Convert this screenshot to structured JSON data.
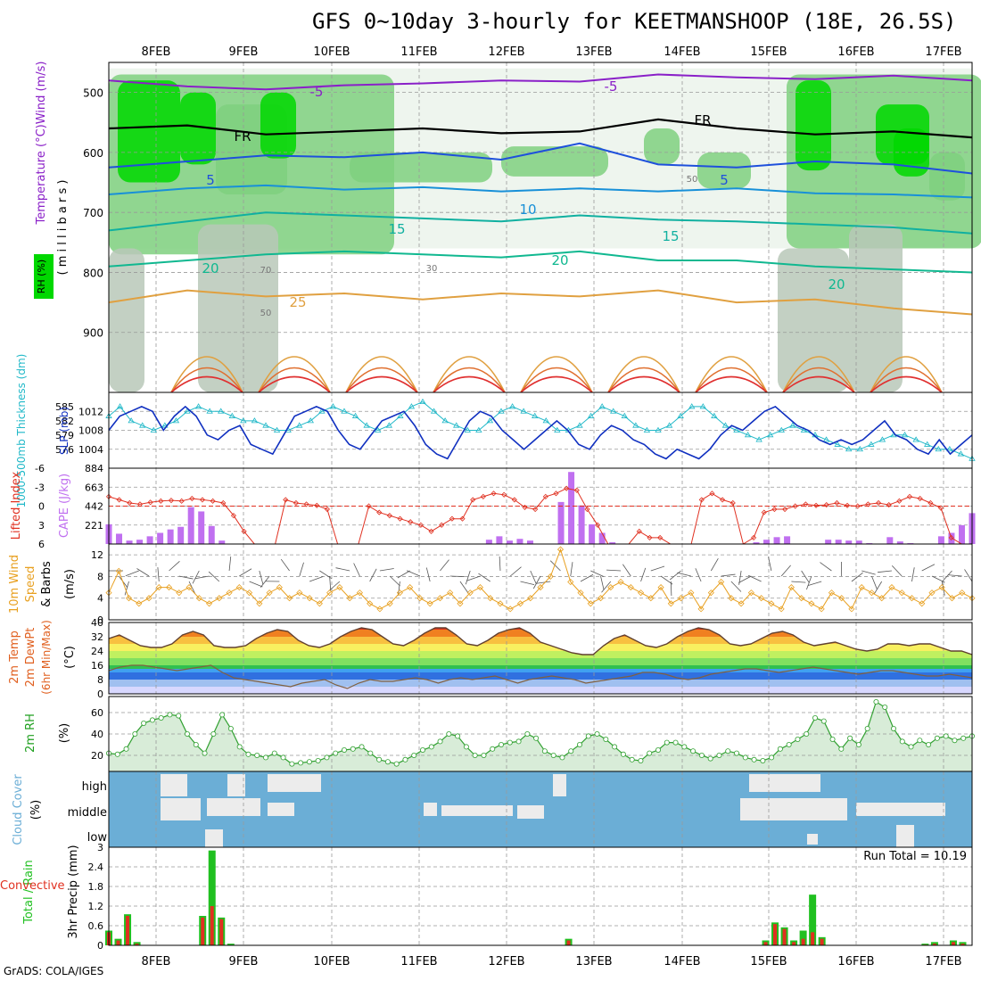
{
  "title": "GFS 0~10day 3-hourly for KEETMANSHOOP (18E, 26.5S)",
  "credit": "GrADS: COLA/IGES",
  "dates": [
    "8FEB",
    "9FEB",
    "10FEB",
    "11FEB",
    "12FEB",
    "13FEB",
    "14FEB",
    "15FEB",
    "16FEB",
    "17FEB"
  ],
  "colors": {
    "rh_green": "#00d800",
    "freezing": "#000000",
    "temp_purple": "#8a2be2",
    "temp_blue": "#1e50dc",
    "cape_bar": "#c070f0",
    "li_line": "#e03020",
    "slp_line": "#1030c0",
    "thk_line": "#20b8c8",
    "wind_line": "#e8a020",
    "rain": "#20c020",
    "conv": "#e03020",
    "cloud_bg": "#6baed6"
  },
  "chart_data": [
    {
      "type": "heatmap",
      "panel": "vertical cross-section",
      "ylabel_left": "RH (%)",
      "ylabel": "Temperature (°C)Wind (m/s)",
      "ylabel2": "( m i l l i b a r s )",
      "yticks": [
        500,
        600,
        700,
        800,
        900
      ],
      "ylim": [
        1000,
        450
      ],
      "contour_labels": [
        "-5",
        "-5",
        "FR",
        "FR",
        "5",
        "5",
        "10",
        "15",
        "15",
        "20",
        "20",
        "20",
        "25",
        "50",
        "50",
        "70",
        "30"
      ],
      "isotherms": [
        {
          "label": "-5",
          "levels": [
            480,
            490,
            495,
            488,
            485,
            480,
            482,
            470,
            475,
            478,
            472,
            480
          ]
        },
        {
          "label": "FR",
          "levels": [
            560,
            555,
            570,
            565,
            560,
            568,
            565,
            545,
            560,
            570,
            565,
            575
          ]
        },
        {
          "label": "5",
          "levels": [
            625,
            615,
            605,
            608,
            600,
            612,
            585,
            620,
            625,
            615,
            620,
            635
          ]
        },
        {
          "label": "10",
          "levels": [
            670,
            660,
            655,
            662,
            658,
            665,
            660,
            665,
            660,
            668,
            670,
            675
          ]
        },
        {
          "label": "15",
          "levels": [
            730,
            715,
            700,
            705,
            710,
            715,
            705,
            712,
            715,
            720,
            725,
            735
          ]
        },
        {
          "label": "20",
          "levels": [
            790,
            780,
            770,
            765,
            770,
            775,
            765,
            780,
            780,
            790,
            795,
            800
          ]
        },
        {
          "label": "25",
          "levels": [
            850,
            830,
            840,
            835,
            845,
            835,
            840,
            830,
            850,
            845,
            860,
            870
          ]
        }
      ]
    },
    {
      "type": "line",
      "panel": "SLP and thickness",
      "ylabel_left": "1000-500mb Thickness (dm)",
      "ylabel_right": "SLP (mb)",
      "yticks_left": [
        576,
        579,
        582,
        585
      ],
      "yticks_right": [
        1004,
        1008,
        1012
      ],
      "series": [
        {
          "name": "SLP (mb)",
          "values": [
            1008,
            1011,
            1012,
            1013,
            1012,
            1008,
            1011,
            1013,
            1011,
            1007,
            1006,
            1008,
            1009,
            1005,
            1004,
            1003,
            1007,
            1011,
            1012,
            1013,
            1012,
            1008,
            1005,
            1004,
            1007,
            1010,
            1011,
            1012,
            1009,
            1005,
            1003,
            1002,
            1006,
            1010,
            1012,
            1011,
            1008,
            1006,
            1004,
            1006,
            1008,
            1010,
            1008,
            1005,
            1004,
            1007,
            1009,
            1008,
            1006,
            1005,
            1003,
            1002,
            1004,
            1003,
            1002,
            1004,
            1007,
            1009,
            1008,
            1010,
            1012,
            1013,
            1011,
            1009,
            1008,
            1006,
            1005,
            1006,
            1005,
            1006,
            1008,
            1010,
            1007,
            1006,
            1004,
            1003,
            1006,
            1003,
            1005,
            1007
          ]
        },
        {
          "name": "Thickness (dm)",
          "values": [
            583,
            585,
            582,
            581,
            580,
            581,
            582,
            584,
            585,
            584,
            584,
            583,
            582,
            582,
            581,
            580,
            580,
            581,
            582,
            584,
            585,
            584,
            583,
            581,
            580,
            581,
            583,
            585,
            586,
            584,
            582,
            581,
            580,
            580,
            582,
            584,
            585,
            584,
            583,
            582,
            580,
            580,
            581,
            583,
            585,
            584,
            583,
            581,
            580,
            580,
            581,
            583,
            585,
            585,
            583,
            581,
            580,
            579,
            578,
            579,
            580,
            581,
            580,
            579,
            578,
            577,
            576,
            576,
            577,
            578,
            579,
            579,
            578,
            577,
            576,
            576,
            575,
            574
          ]
        }
      ]
    },
    {
      "type": "bar",
      "panel": "Lifted Index and CAPE",
      "ylabel_left": "Lifted Index",
      "ylabel_right": "CAPE (J/kg)",
      "yticks_left": [
        -6,
        -3,
        0,
        3,
        6
      ],
      "yticks_right": [
        221,
        442,
        663,
        884
      ],
      "series": [
        {
          "name": "CAPE (J/kg)",
          "values": [
            230,
            120,
            40,
            50,
            90,
            130,
            170,
            200,
            430,
            380,
            210,
            40,
            0,
            0,
            0,
            0,
            0,
            0,
            0,
            0,
            0,
            0,
            0,
            0,
            0,
            0,
            0,
            0,
            0,
            0,
            0,
            0,
            0,
            0,
            0,
            0,
            0,
            50,
            90,
            40,
            60,
            40,
            0,
            0,
            490,
            840,
            450,
            230,
            130,
            20,
            0,
            0,
            0,
            0,
            0,
            0,
            0,
            0,
            0,
            0,
            0,
            0,
            0,
            20,
            50,
            80,
            90,
            0,
            0,
            0,
            50,
            50,
            40,
            40,
            10,
            0,
            80,
            30,
            10,
            0,
            0,
            90,
            130,
            220,
            360
          ]
        },
        {
          "name": "Lifted Index",
          "values": [
            -1.5,
            -1,
            -0.5,
            -0.3,
            -0.6,
            -0.8,
            -0.9,
            -0.8,
            -1.2,
            -1,
            -0.8,
            -0.5,
            1.5,
            4,
            6,
            6,
            6,
            -1,
            -0.5,
            -0.3,
            -0.1,
            0.5,
            6,
            6,
            6,
            0,
            1,
            1.5,
            2,
            2.5,
            3,
            4,
            3,
            2,
            2,
            -1,
            -1.5,
            -2,
            -1.8,
            -1,
            0.2,
            0.5,
            -1.5,
            -2,
            -2.8,
            -2.5,
            0.5,
            3,
            6,
            6,
            6,
            4,
            5,
            5,
            6,
            6,
            6,
            -1,
            -2,
            -1,
            -0.5,
            6,
            5,
            1,
            0.5,
            0.5,
            0,
            -0.3,
            -0.1,
            -0.2,
            -0.5,
            -0.1,
            0,
            -0.3,
            -0.5,
            -0.2,
            -0.8,
            -1.5,
            -1.2,
            -0.5,
            0.3,
            5,
            6,
            6
          ]
        }
      ]
    },
    {
      "type": "line",
      "panel": "10m wind",
      "ylabel_left": "10m Wind",
      "ylabel_left2": "Speed",
      "ylabel_left3": "& Barbs",
      "ylabel_right": "(m/s)",
      "yticks": [
        0,
        4,
        8,
        12
      ],
      "series": [
        {
          "name": "Speed",
          "values": [
            5,
            9,
            4,
            3,
            4,
            6,
            6,
            5,
            6,
            4,
            3,
            4,
            5,
            6,
            5,
            3,
            5,
            6,
            4,
            5,
            4,
            3,
            5,
            6,
            4,
            5,
            3,
            2,
            3,
            5,
            6,
            4,
            3,
            4,
            5,
            3,
            5,
            6,
            4,
            3,
            2,
            3,
            4,
            6,
            8,
            13,
            7,
            5,
            3,
            4,
            6,
            7,
            6,
            5,
            4,
            6,
            3,
            4,
            5,
            2,
            5,
            7,
            4,
            3,
            5,
            4,
            3,
            2,
            6,
            4,
            3,
            2,
            5,
            4,
            2,
            6,
            5,
            4,
            6,
            5,
            4,
            3,
            5,
            6,
            4,
            5,
            4
          ]
        }
      ]
    },
    {
      "type": "area",
      "panel": "2m temperature",
      "ylabel_left": "2m Temp",
      "ylabel_left2": "2m DewPt",
      "ylabel_left3": "(6hr Min/Max)",
      "ylabel_right": "(°C)",
      "yticks": [
        0,
        8,
        16,
        24,
        32,
        40
      ],
      "series": [
        {
          "name": "2m Temp",
          "values": [
            31,
            33,
            30,
            27,
            26,
            26,
            28,
            33,
            35,
            33,
            27,
            26,
            26,
            27,
            31,
            34,
            36,
            35,
            30,
            27,
            26,
            28,
            32,
            35,
            37,
            36,
            32,
            28,
            27,
            30,
            34,
            37,
            37,
            33,
            28,
            27,
            30,
            34,
            36,
            37,
            34,
            29,
            27,
            25,
            23,
            22,
            22,
            27,
            31,
            33,
            30,
            27,
            26,
            28,
            32,
            35,
            37,
            36,
            33,
            28,
            27,
            28,
            31,
            34,
            35,
            33,
            29,
            27,
            28,
            29,
            27,
            25,
            24,
            25,
            28,
            28,
            27,
            28,
            28,
            26,
            24,
            24,
            22
          ]
        },
        {
          "name": "2m DewPt",
          "values": [
            13,
            15,
            16,
            16,
            15,
            14,
            13,
            14,
            15,
            16,
            12,
            9,
            8,
            7,
            6,
            5,
            4,
            6,
            7,
            8,
            5,
            3,
            6,
            8,
            7,
            7,
            8,
            9,
            8,
            6,
            8,
            9,
            8,
            9,
            10,
            8,
            6,
            8,
            9,
            10,
            9,
            8,
            6,
            7,
            8,
            9,
            10,
            12,
            12,
            11,
            9,
            8,
            9,
            11,
            12,
            13,
            14,
            14,
            13,
            12,
            13,
            14,
            15,
            14,
            13,
            12,
            11,
            12,
            13,
            13,
            12,
            11,
            10,
            10,
            11,
            10,
            9
          ]
        }
      ]
    },
    {
      "type": "area",
      "panel": "2m RH",
      "ylabel_left": "2m RH",
      "ylabel_right": "(%)",
      "yticks": [
        20,
        40,
        60
      ],
      "series": [
        {
          "name": "2m RH",
          "values": [
            22,
            21,
            26,
            40,
            50,
            53,
            55,
            58,
            57,
            40,
            30,
            22,
            40,
            58,
            45,
            28,
            21,
            20,
            18,
            22,
            18,
            12,
            13,
            14,
            15,
            18,
            22,
            25,
            26,
            28,
            22,
            16,
            14,
            12,
            16,
            20,
            25,
            28,
            33,
            40,
            38,
            28,
            20,
            20,
            26,
            30,
            32,
            33,
            40,
            36,
            24,
            20,
            18,
            24,
            30,
            38,
            40,
            35,
            28,
            21,
            16,
            15,
            22,
            25,
            32,
            32,
            28,
            24,
            20,
            17,
            20,
            24,
            22,
            18,
            16,
            15,
            18,
            26,
            30,
            35,
            40,
            55,
            52,
            35,
            26,
            36,
            30,
            45,
            70,
            65,
            45,
            33,
            28,
            34,
            30,
            36,
            38,
            34,
            36,
            38
          ]
        }
      ]
    },
    {
      "type": "heatmap",
      "panel": "Cloud cover",
      "ylabel": "Cloud Cover",
      "ylabel_right": "(%)",
      "levels": [
        "high",
        "middle",
        "low"
      ]
    },
    {
      "type": "bar",
      "panel": "Precipitation",
      "ylabel_left": "Total / Rain",
      "ylabel_left2": "Convective",
      "ylabel_right": "3hr Precip (mm)",
      "yticks": [
        0,
        0.6,
        1.2,
        1.8,
        2.4,
        3
      ],
      "annotation": "Run Total = 10.19",
      "series": [
        {
          "name": "Total",
          "values": [
            0.45,
            0.2,
            0.95,
            0.1,
            0,
            0,
            0,
            0,
            0,
            0,
            0.9,
            2.9,
            0.85,
            0.05,
            0,
            0,
            0,
            0,
            0,
            0,
            0,
            0,
            0,
            0,
            0,
            0,
            0,
            0,
            0,
            0,
            0,
            0,
            0,
            0,
            0,
            0,
            0,
            0,
            0,
            0,
            0,
            0,
            0,
            0,
            0,
            0,
            0,
            0,
            0,
            0.2,
            0,
            0,
            0,
            0,
            0,
            0,
            0,
            0,
            0,
            0,
            0,
            0,
            0,
            0,
            0,
            0,
            0,
            0,
            0,
            0,
            0.15,
            0.7,
            0.55,
            0.15,
            0.45,
            1.55,
            0.25,
            0,
            0,
            0,
            0,
            0,
            0,
            0,
            0,
            0,
            0,
            0.05,
            0.1,
            0,
            0.15,
            0.1,
            0
          ]
        },
        {
          "name": "Convective",
          "values": [
            0.4,
            0.15,
            0.9,
            0.05,
            0,
            0,
            0,
            0,
            0,
            0,
            0.85,
            1.2,
            0.8,
            0,
            0,
            0,
            0,
            0,
            0,
            0,
            0,
            0,
            0,
            0,
            0,
            0,
            0,
            0,
            0,
            0,
            0,
            0,
            0,
            0,
            0,
            0,
            0,
            0,
            0,
            0,
            0,
            0,
            0,
            0,
            0,
            0,
            0,
            0,
            0,
            0.15,
            0,
            0,
            0,
            0,
            0,
            0,
            0,
            0,
            0,
            0,
            0,
            0,
            0,
            0,
            0,
            0,
            0,
            0,
            0,
            0,
            0.1,
            0.65,
            0.5,
            0.1,
            0.2,
            0.4,
            0.2,
            0,
            0,
            0,
            0,
            0,
            0,
            0,
            0,
            0,
            0,
            0.02,
            0.05,
            0,
            0.1,
            0.05,
            0
          ]
        }
      ]
    }
  ]
}
